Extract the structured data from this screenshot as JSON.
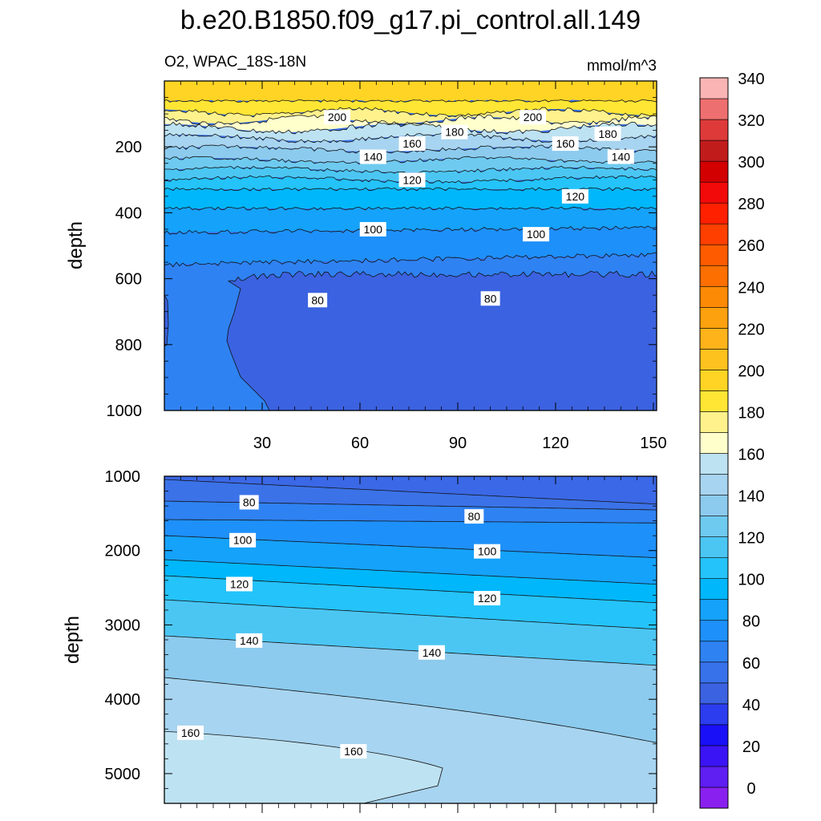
{
  "title": "b.e20.B1850.f09_g17.pi_control.all.149",
  "subtitle_left": "O2, WPAC_18S-18N",
  "subtitle_right": "mmol/m^3",
  "chart_data": [
    {
      "type": "contour",
      "panel": "upper",
      "xlabel": "",
      "ylabel": "depth",
      "xlim": [
        0,
        151
      ],
      "ylim": [
        1000,
        0
      ],
      "x_ticks": [
        30,
        60,
        90,
        120,
        150
      ],
      "y_ticks": [
        200,
        400,
        600,
        800,
        1000
      ],
      "contour_labels": [
        {
          "text": "200",
          "x": 53,
          "y": 110
        },
        {
          "text": "200",
          "x": 113,
          "y": 110
        },
        {
          "text": "180",
          "x": 89,
          "y": 155
        },
        {
          "text": "180",
          "x": 136,
          "y": 160
        },
        {
          "text": "160",
          "x": 76,
          "y": 190
        },
        {
          "text": "160",
          "x": 123,
          "y": 190
        },
        {
          "text": "140",
          "x": 64,
          "y": 230
        },
        {
          "text": "140",
          "x": 140,
          "y": 230
        },
        {
          "text": "120",
          "x": 76,
          "y": 300
        },
        {
          "text": "120",
          "x": 126,
          "y": 350
        },
        {
          "text": "100",
          "x": 64,
          "y": 450
        },
        {
          "text": "100",
          "x": 114,
          "y": 465
        },
        {
          "text": "80",
          "x": 47,
          "y": 665
        },
        {
          "text": "80",
          "x": 100,
          "y": 660
        }
      ]
    },
    {
      "type": "contour",
      "panel": "lower",
      "xlabel": "",
      "ylabel": "depth",
      "xlim": [
        0,
        151
      ],
      "ylim": [
        5400,
        1000
      ],
      "y_ticks": [
        1000,
        2000,
        3000,
        4000,
        5000
      ],
      "contour_labels": [
        {
          "text": "80",
          "x": 26,
          "y": 1350
        },
        {
          "text": "80",
          "x": 95,
          "y": 1540
        },
        {
          "text": "100",
          "x": 24,
          "y": 1860
        },
        {
          "text": "100",
          "x": 99,
          "y": 2010
        },
        {
          "text": "120",
          "x": 23,
          "y": 2450
        },
        {
          "text": "120",
          "x": 99,
          "y": 2640
        },
        {
          "text": "140",
          "x": 26,
          "y": 3210
        },
        {
          "text": "140",
          "x": 82,
          "y": 3370
        },
        {
          "text": "160",
          "x": 8,
          "y": 4450
        },
        {
          "text": "160",
          "x": 58,
          "y": 4700
        }
      ]
    }
  ],
  "colorbar": {
    "labels": [
      "0",
      "20",
      "40",
      "60",
      "80",
      "100",
      "120",
      "140",
      "160",
      "180",
      "200",
      "220",
      "240",
      "260",
      "280",
      "300",
      "320",
      "340"
    ],
    "colors": [
      "#8a20f0",
      "#5f1ef2",
      "#3b14f5",
      "#1a10f7",
      "#2b3dee",
      "#3b62e0",
      "#3872ea",
      "#2f82f2",
      "#1e90fa",
      "#15a2fb",
      "#00b7fb",
      "#24c3fa",
      "#4bc6f3",
      "#6fcaf0",
      "#8ccbee",
      "#a7d4f0",
      "#bde2f2",
      "#ffffcc",
      "#fff28d",
      "#ffe634",
      "#ffd424",
      "#fec21f",
      "#feb31a",
      "#fda10e",
      "#fd8a05",
      "#fd6f00",
      "#fe5b00",
      "#ff3f00",
      "#ff2000",
      "#f20a0a",
      "#d20000",
      "#c11c1c",
      "#de3a3a",
      "#ee6f6f",
      "#fbb4b4"
    ]
  }
}
